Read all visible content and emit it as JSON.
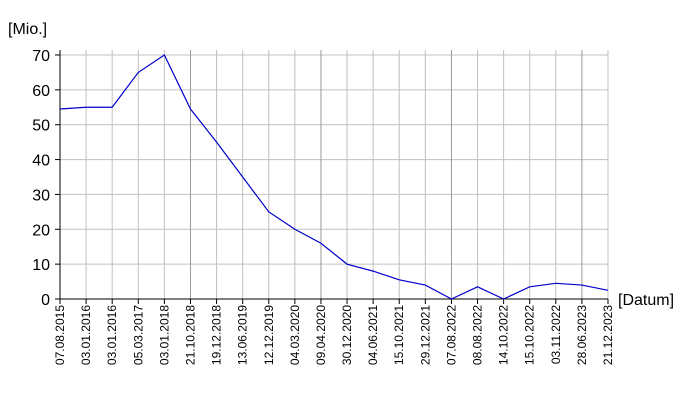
{
  "chart_data": {
    "type": "line",
    "y_label": "[Mio.]",
    "x_label": "[Datum]",
    "categories": [
      "07.08.2015",
      "03.01.2016",
      "03.01.2016",
      "05.03.2017",
      "03.01.2018",
      "21.10.2018",
      "19.12.2018",
      "13.06.2019",
      "12.12.2019",
      "04.03.2020",
      "09.04.2020",
      "30.12.2020",
      "04.06.2021",
      "15.10.2021",
      "29.12.2021",
      "07.08.2022",
      "08.08.2022",
      "14.10.2022",
      "15.10.2022",
      "03.11.2022",
      "28.06.2023",
      "21.12.2023"
    ],
    "series": [
      {
        "color": "#0000cc",
        "values": [
          54.5,
          55,
          55,
          65,
          70,
          54.5,
          45,
          35,
          25,
          20,
          16,
          10,
          8,
          5.5,
          4,
          0,
          3.5,
          0,
          3.5,
          4.5,
          4,
          2.5
        ]
      }
    ],
    "ylim": [
      0,
      70
    ],
    "yticks": [
      0,
      10,
      20,
      30,
      40,
      50,
      60,
      70
    ],
    "grid": true
  }
}
